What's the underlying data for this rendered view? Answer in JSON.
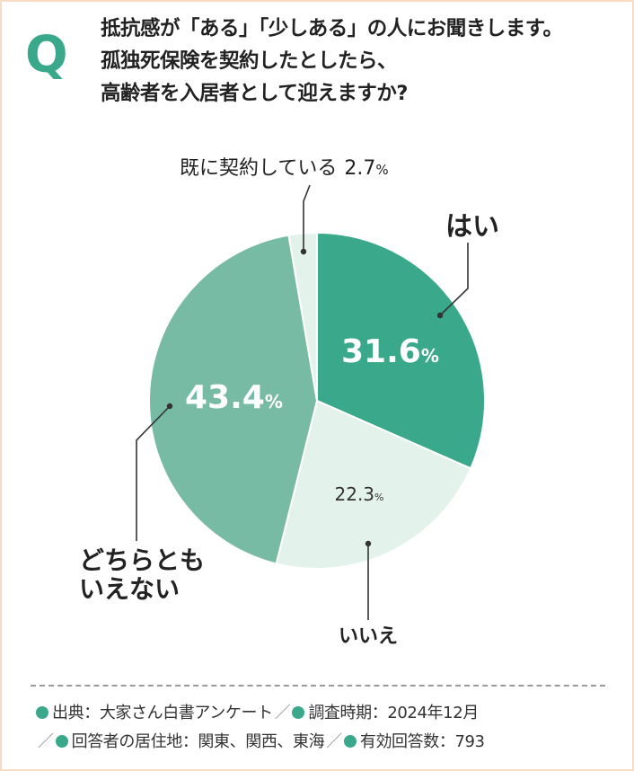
{
  "q_mark": "Q",
  "question": {
    "line1": "抵抗感が「ある」「少しある」の人にお聞きします。",
    "line2": "孤独死保険を契約したとしたら、",
    "line3": "高齢者を入居者として迎えますか?"
  },
  "chart_data": {
    "type": "pie",
    "unit": "%",
    "slices": [
      {
        "label": "はい",
        "value": 31.6,
        "color": "#3aa88a"
      },
      {
        "label": "いいえ",
        "value": 22.3,
        "color": "#e4f2ec"
      },
      {
        "label": "どちらとも\nいえない",
        "value": 43.4,
        "color": "#77bba4"
      },
      {
        "label": "既に契約している",
        "value": 2.7,
        "color": "#e4f2ec"
      }
    ]
  },
  "source": {
    "items": [
      {
        "label": "出典",
        "value": "大家さん白書アンケート"
      },
      {
        "label": "調査時期",
        "value": "2024年12月"
      },
      {
        "label": "回答者の居住地",
        "value": "関東、関西、東海"
      },
      {
        "label": "有効回答数",
        "value": "793"
      }
    ],
    "separator": "／",
    "colon": "："
  }
}
